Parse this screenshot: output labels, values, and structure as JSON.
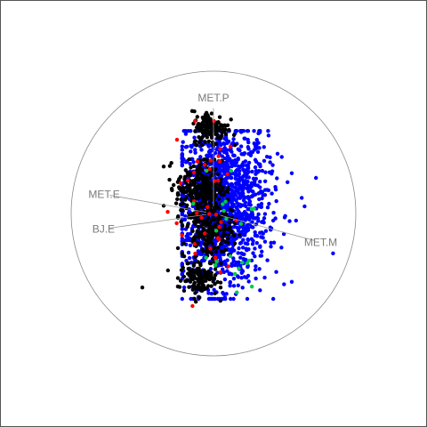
{
  "chart_data": {
    "type": "scatter",
    "title": "",
    "axes": [
      {
        "name": "MET.P",
        "angle_deg": 90
      },
      {
        "name": "MET.M",
        "angle_deg": -15
      },
      {
        "name": "MET.E",
        "angle_deg": 170
      },
      {
        "name": "BJ.E",
        "angle_deg": 188
      }
    ],
    "xlim": [
      -1,
      1
    ],
    "ylim": [
      -1,
      1
    ],
    "grid": false,
    "legend": "none",
    "colors": {
      "black": "#000000",
      "blue": "#0000ff",
      "red": "#ff0000",
      "green": "#00cc44",
      "circle": "#888888",
      "axis": "#999999"
    },
    "clusters": [
      {
        "color": "blue",
        "count": 1500,
        "cx": 0.06,
        "cy": 0.06,
        "sx": 0.16,
        "sy": 0.28,
        "xmin": -0.22,
        "xmax": 0.55,
        "ymin": -0.6,
        "ymax": 0.58
      },
      {
        "color": "black",
        "count": 230,
        "cx": -0.1,
        "cy": 0.19,
        "sx": 0.08,
        "sy": 0.09,
        "xmin": -0.35,
        "xmax": 0.1,
        "ymin": -0.05,
        "ymax": 0.4
      },
      {
        "color": "black",
        "count": 140,
        "cx": -0.02,
        "cy": 0.6,
        "sx": 0.06,
        "sy": 0.06,
        "xmin": -0.15,
        "xmax": 0.15,
        "ymin": 0.48,
        "ymax": 0.72
      },
      {
        "color": "black",
        "count": 260,
        "cx": -0.04,
        "cy": -0.07,
        "sx": 0.09,
        "sy": 0.13,
        "xmin": -0.25,
        "xmax": 0.2,
        "ymin": -0.35,
        "ymax": 0.18
      },
      {
        "color": "black",
        "count": 110,
        "cx": -0.11,
        "cy": -0.46,
        "sx": 0.07,
        "sy": 0.06,
        "xmin": -0.35,
        "xmax": 0.05,
        "ymin": -0.62,
        "ymax": -0.3
      },
      {
        "color": "red",
        "count": 40,
        "cx": -0.05,
        "cy": 0.05,
        "sx": 0.12,
        "sy": 0.34,
        "xmin": -0.35,
        "xmax": 0.35,
        "ymin": -0.65,
        "ymax": 0.65
      },
      {
        "color": "green",
        "count": 22,
        "cx": 0.08,
        "cy": -0.1,
        "sx": 0.12,
        "sy": 0.25,
        "xmin": -0.3,
        "xmax": 0.4,
        "ymin": -0.65,
        "ymax": 0.3
      }
    ],
    "outliers": [
      {
        "color": "blue",
        "points": [
          [
            0.72,
            0.25
          ],
          [
            0.84,
            -0.28
          ],
          [
            0.64,
            0.05
          ],
          [
            0.62,
            0.11
          ],
          [
            0.52,
            0.22
          ],
          [
            0.58,
            -0.05
          ],
          [
            0.45,
            0.42
          ],
          [
            0.41,
            0.14
          ],
          [
            0.55,
            -0.48
          ]
        ]
      },
      {
        "color": "black",
        "points": [
          [
            -0.5,
            -0.52
          ],
          [
            -0.35,
            0.33
          ],
          [
            -0.32,
            -0.4
          ],
          [
            -0.28,
            0.2
          ],
          [
            0.1,
            0.62
          ]
        ]
      }
    ]
  }
}
